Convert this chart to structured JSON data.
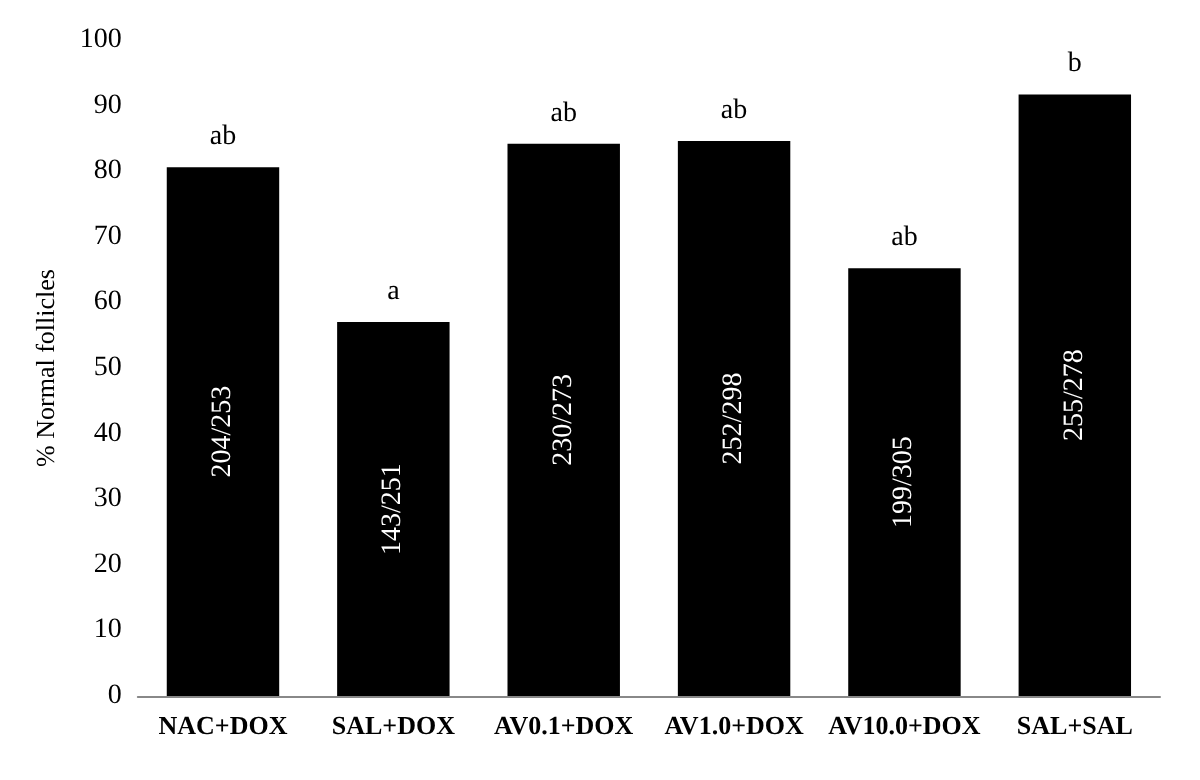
{
  "chart_data": {
    "type": "bar",
    "ylabel": "% Normal follicles",
    "categories": [
      "NAC+DOX",
      "SAL+DOX",
      "AV0.1+DOX",
      "AV1.0+DOX",
      "AV10.0+DOX",
      "SAL+SAL"
    ],
    "values": [
      80.6,
      57.0,
      84.2,
      84.6,
      65.2,
      91.7
    ],
    "value_labels": [
      "204/253",
      "143/251",
      "230/273",
      "252/298",
      "199/305",
      "255/278"
    ],
    "color": "#000000",
    "ylim": [
      0,
      100
    ],
    "yticks": [
      0,
      10,
      20,
      30,
      40,
      50,
      60,
      70,
      80,
      90,
      100
    ],
    "grid": false,
    "annotations": [
      {
        "text": "ab",
        "x": "NAC+DOX",
        "y": 80.6
      },
      {
        "text": "a",
        "x": "SAL+DOX",
        "y": 57.0
      },
      {
        "text": "ab",
        "x": "AV0.1+DOX",
        "y": 84.2
      },
      {
        "text": "ab",
        "x": "AV1.0+DOX",
        "y": 84.6
      },
      {
        "text": "ab",
        "x": "AV10.0+DOX",
        "y": 65.2
      },
      {
        "text": "b",
        "x": "SAL+SAL",
        "y": 91.7
      }
    ]
  }
}
